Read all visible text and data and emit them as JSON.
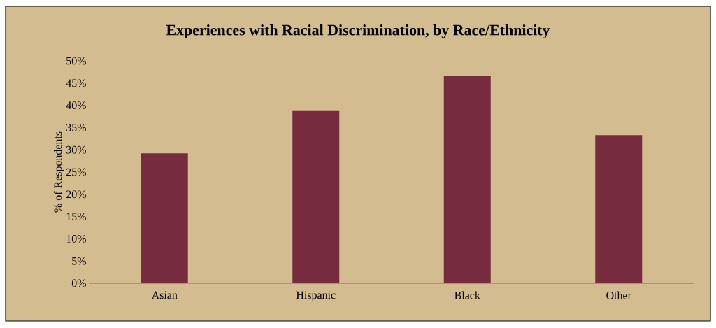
{
  "chart_data": {
    "type": "bar",
    "title": "Experiences with Racial Discrimination, by Race/Ethnicity",
    "ylabel": "% of Respondents",
    "categories": [
      "Asian",
      "Hispanic",
      "Black",
      "Other"
    ],
    "values": [
      29.2,
      38.7,
      46.7,
      33.3
    ],
    "color": "#772b3f",
    "ylim": [
      0,
      50
    ],
    "yticks": [
      {
        "value": 0,
        "label": "0%"
      },
      {
        "value": 5,
        "label": "5%"
      },
      {
        "value": 10,
        "label": "10%"
      },
      {
        "value": 15,
        "label": "15%"
      },
      {
        "value": 20,
        "label": "20%"
      },
      {
        "value": 25,
        "label": "25%"
      },
      {
        "value": 30,
        "label": "30%"
      },
      {
        "value": 35,
        "label": "35%"
      },
      {
        "value": 40,
        "label": "40%"
      },
      {
        "value": 45,
        "label": "45%"
      },
      {
        "value": 50,
        "label": "50%"
      }
    ],
    "grid": false
  }
}
